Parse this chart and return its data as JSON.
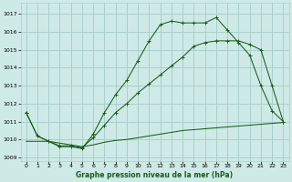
{
  "bg_color": "#ceeae6",
  "grid_color": "#aacfcc",
  "line_color": "#1a5c1a",
  "ylabel_ticks": [
    1009,
    1010,
    1011,
    1012,
    1013,
    1014,
    1015,
    1016,
    1017
  ],
  "xlabel_label": "Graphe pression niveau de la mer (hPa)",
  "x_ticks": [
    0,
    1,
    2,
    3,
    4,
    5,
    6,
    7,
    8,
    9,
    10,
    11,
    12,
    13,
    14,
    15,
    16,
    17,
    18,
    19,
    20,
    21,
    22,
    23
  ],
  "xlim": [
    -0.5,
    23.5
  ],
  "ylim": [
    1008.8,
    1017.6
  ],
  "line1_x": [
    0,
    1,
    2,
    3,
    4,
    5,
    6,
    7,
    8,
    9,
    10,
    11,
    12,
    13,
    14,
    15,
    16,
    17,
    18,
    19,
    20,
    21,
    22,
    23
  ],
  "line1": [
    1011.5,
    1010.2,
    1009.9,
    1009.6,
    1009.6,
    1009.5,
    1010.3,
    1011.5,
    1012.5,
    1013.3,
    1014.4,
    1015.5,
    1016.4,
    1016.6,
    1016.5,
    1016.5,
    1016.5,
    1016.8,
    1016.1,
    1015.4,
    1014.7,
    1013.0,
    1011.6,
    1011.0
  ],
  "line2_x": [
    0,
    1,
    2,
    3,
    4,
    5,
    6,
    7,
    8,
    9,
    10,
    11,
    12,
    13,
    14,
    15,
    16,
    17,
    18,
    19,
    20,
    21,
    22,
    23
  ],
  "line2": [
    1011.5,
    1010.2,
    1009.9,
    1009.65,
    1009.65,
    1009.55,
    1010.1,
    1010.8,
    1011.5,
    1012.0,
    1012.6,
    1013.1,
    1013.6,
    1014.1,
    1014.6,
    1015.2,
    1015.4,
    1015.5,
    1015.5,
    1015.5,
    1015.3,
    1015.0,
    1013.0,
    1011.0
  ],
  "line3_x": [
    0,
    1,
    2,
    3,
    4,
    5,
    6,
    7,
    8,
    9,
    10,
    11,
    12,
    13,
    14,
    15,
    16,
    17,
    18,
    19,
    20,
    21,
    22,
    23
  ],
  "line3": [
    1009.9,
    1009.9,
    1009.9,
    1009.8,
    1009.7,
    1009.6,
    1009.7,
    1009.85,
    1009.95,
    1010.0,
    1010.1,
    1010.2,
    1010.3,
    1010.4,
    1010.5,
    1010.55,
    1010.6,
    1010.65,
    1010.7,
    1010.75,
    1010.8,
    1010.85,
    1010.9,
    1010.95
  ]
}
